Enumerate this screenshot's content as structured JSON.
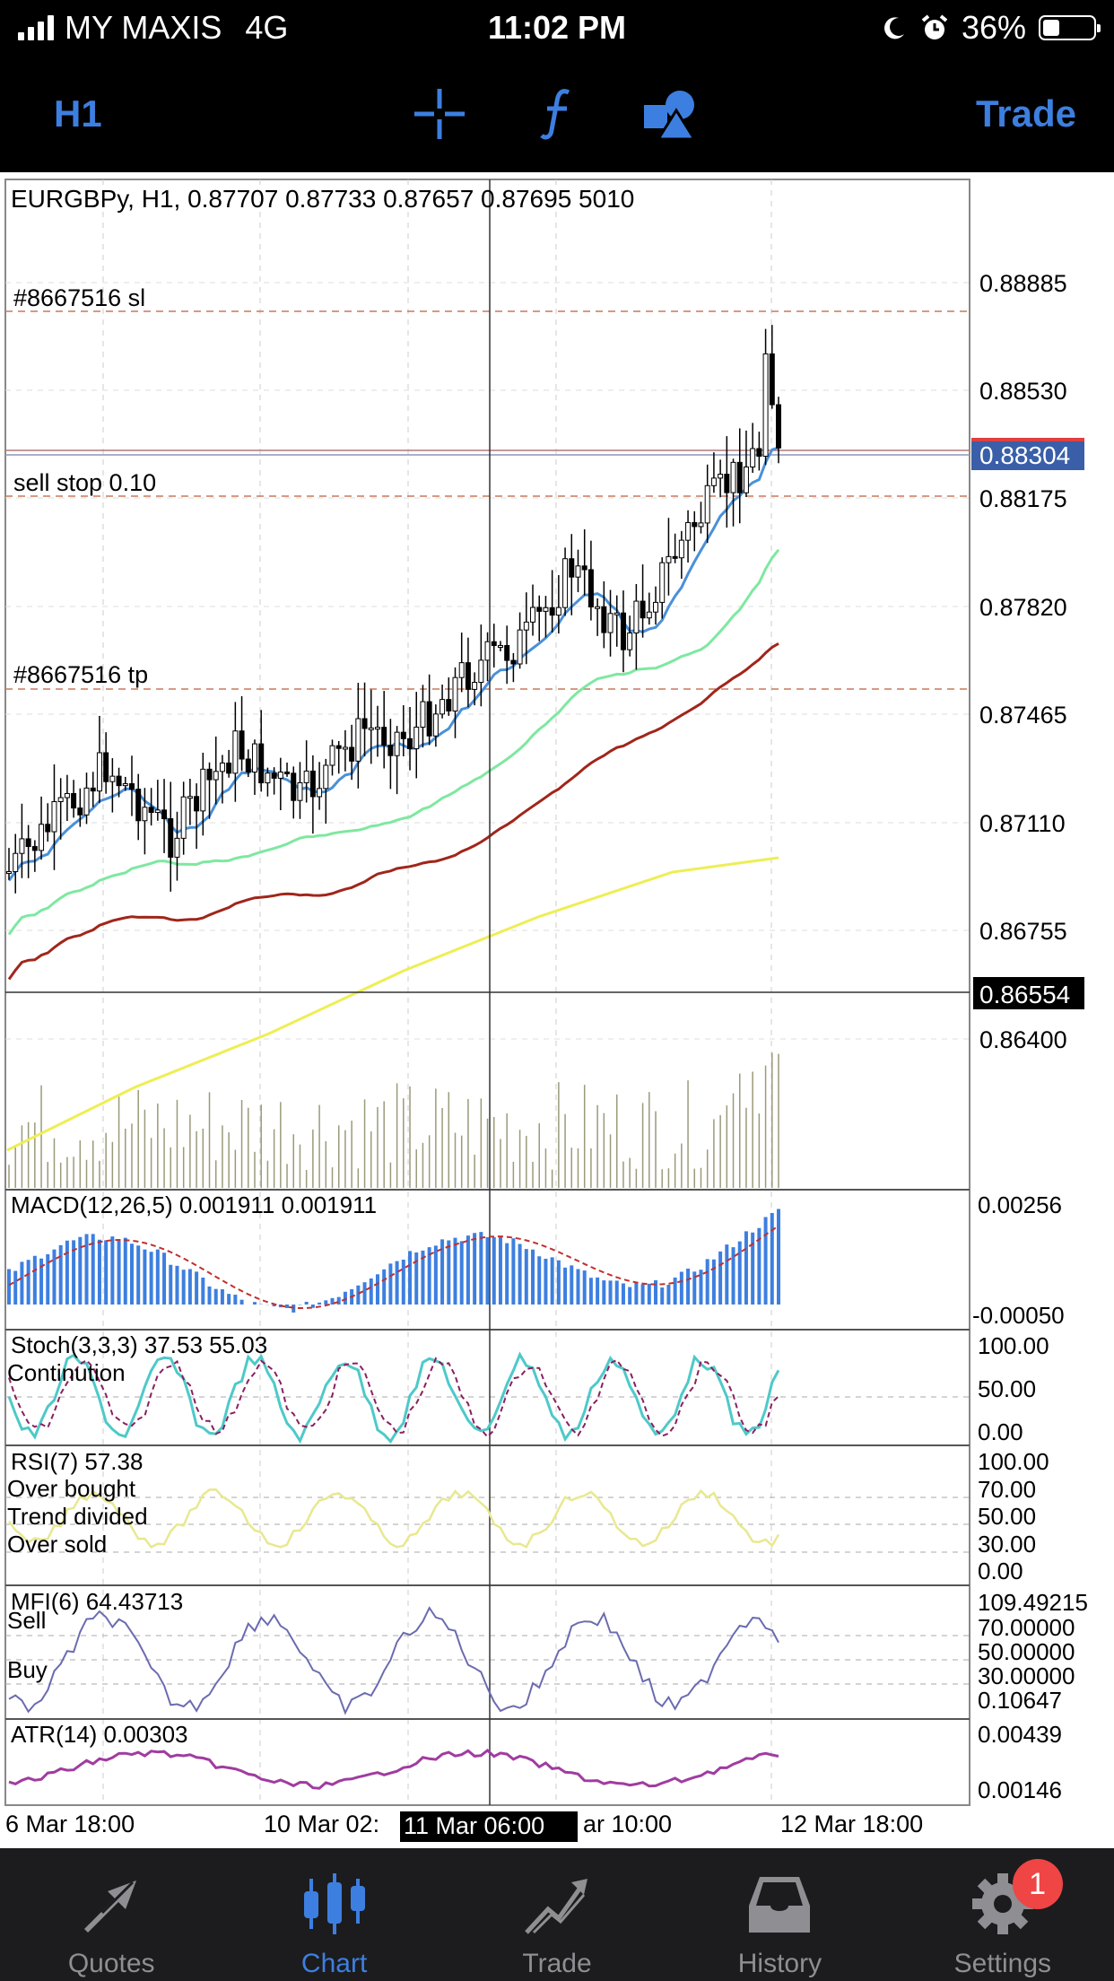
{
  "status": {
    "carrier": "MY MAXIS",
    "network": "4G",
    "time": "11:02 PM",
    "battery": "36%"
  },
  "toolbar": {
    "period": "H1",
    "trade": "Trade"
  },
  "chart": {
    "header": "EURGBPy, H1, 0.87707 0.87733 0.87657 0.87695 5010",
    "sl_label": "#8667516 sl",
    "sellstop_label": "sell stop 0.10",
    "tp_label": "#8667516 tp",
    "price_ticks": [
      "0.88885",
      "0.88530",
      "0.88175",
      "0.87820",
      "0.87465",
      "0.87110",
      "0.86755",
      "0.86400"
    ],
    "current_price": "0.88304",
    "crosshair_price": "0.86554",
    "date_labels": [
      "6 Mar 18:00",
      "10 Mar 02:",
      "ar 10:00",
      "12 Mar 18:00"
    ],
    "crosshair_date": "11 Mar 06:00"
  },
  "indicators": {
    "macd": {
      "label": "MACD(12,26,5) 0.001911 0.001911",
      "top": "0.00256",
      "bottom": "-0.00050"
    },
    "stoch": {
      "label": "Stoch(3,3,3) 37.53 55.03",
      "note": "Continution",
      "ticks": [
        "100.00",
        "50.00",
        "0.00"
      ]
    },
    "rsi": {
      "label": "RSI(7) 57.38",
      "notes": [
        "Over bought",
        "Trend divided",
        "Over sold"
      ],
      "ticks": [
        "100.00",
        "70.00",
        "50.00",
        "30.00",
        "0.00"
      ]
    },
    "mfi": {
      "label": "MFI(6) 64.43713",
      "notes": [
        "Sell",
        "Buy"
      ],
      "ticks": [
        "109.49215",
        "70.00000",
        "50.00000",
        "30.00000",
        "0.10647"
      ]
    },
    "atr": {
      "label": "ATR(14) 0.00303",
      "ticks": [
        "0.00439",
        "0.00146"
      ]
    }
  },
  "tabs": [
    {
      "label": "Quotes",
      "icon": "quotes-arrows-icon"
    },
    {
      "label": "Chart",
      "icon": "candlestick-chart-icon"
    },
    {
      "label": "Trade",
      "icon": "trade-trend-icon"
    },
    {
      "label": "History",
      "icon": "history-inbox-icon"
    },
    {
      "label": "Settings",
      "icon": "settings-gear-icon",
      "badge": "1"
    }
  ],
  "colors": {
    "accent": "#3d7fe0",
    "ma_fast": "#4a90d9",
    "ma_green": "#7ee8a0",
    "ma_red": "#a0261a",
    "ma_yellow": "#eeee55",
    "macd_bar": "#3d7fe0",
    "stoch": "#4ec9c9",
    "rsi": "#e8e890",
    "mfi": "#6b6bb0",
    "atr": "#a03ca0"
  }
}
